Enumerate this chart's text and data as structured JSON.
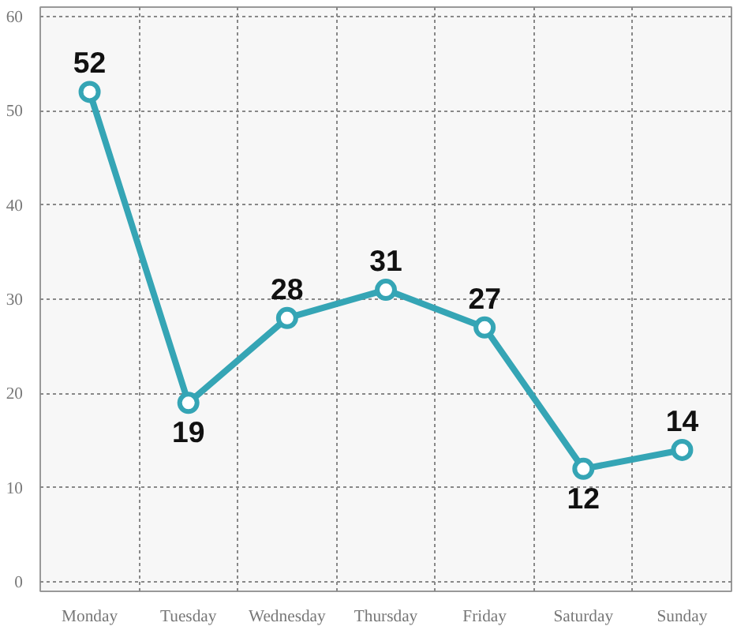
{
  "chart_data": {
    "type": "line",
    "categories": [
      "Monday",
      "Tuesday",
      "Wednesday",
      "Thursday",
      "Friday",
      "Saturday",
      "Sunday"
    ],
    "series": [
      {
        "color": "#35a5b5",
        "values": [
          52,
          19,
          28,
          31,
          27,
          12,
          14
        ]
      }
    ],
    "ylim": [
      -1,
      61
    ],
    "yticks": [
      0,
      10,
      20,
      30,
      40,
      50,
      60
    ],
    "grid": true,
    "marker": "circle",
    "data_labels": true
  }
}
